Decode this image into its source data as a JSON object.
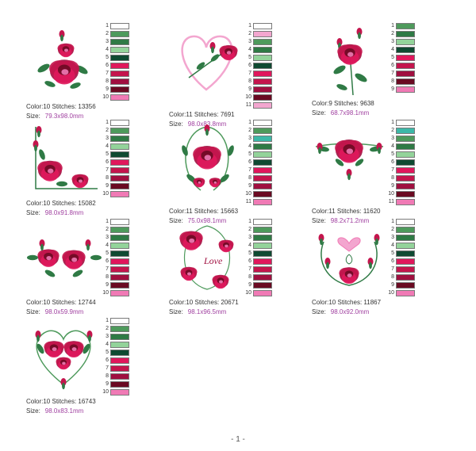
{
  "palette": {
    "white": "#ffffff",
    "mid_green": "#4e9a5c",
    "dark_green": "#2f7a45",
    "light_green": "#93d39a",
    "deep_green": "#0f4a32",
    "hot_pink": "#e0175c",
    "rose": "#c4154d",
    "crimson": "#a01040",
    "maroon": "#6a0a22",
    "pink": "#f07ab5",
    "teal": "#3db8a8",
    "light_pink": "#f3a6cf"
  },
  "designs": [
    {
      "color_label": "Color:10",
      "stitches_label": "Stitches:",
      "stitches": "13356",
      "size_label": "Size:",
      "size": "79.3x98.0mm",
      "art": "rose-bouquet-icon",
      "swatches": [
        [
          "1",
          "white"
        ],
        [
          "2",
          "mid_green"
        ],
        [
          "3",
          "dark_green"
        ],
        [
          "4",
          "light_green"
        ],
        [
          "5",
          "deep_green"
        ],
        [
          "6",
          "hot_pink"
        ],
        [
          "7",
          "rose"
        ],
        [
          "8",
          "crimson"
        ],
        [
          "9",
          "maroon"
        ],
        [
          "10",
          "pink"
        ]
      ]
    },
    {
      "color_label": "Color:11",
      "stitches_label": "Stitches:",
      "stitches": "7691",
      "size_label": "Size:",
      "size": "98.0x83.8mm",
      "art": "heart-rose-icon",
      "swatches": [
        [
          "1",
          "white"
        ],
        [
          "2",
          "light_pink"
        ],
        [
          "3",
          "mid_green"
        ],
        [
          "4",
          "dark_green"
        ],
        [
          "5",
          "light_green"
        ],
        [
          "6",
          "deep_green"
        ],
        [
          "7",
          "hot_pink"
        ],
        [
          "8",
          "rose"
        ],
        [
          "9",
          "crimson"
        ],
        [
          "10",
          "maroon"
        ],
        [
          "11",
          "light_pink"
        ]
      ]
    },
    {
      "color_label": "Color:9",
      "stitches_label": "Stitches:",
      "stitches": "9638",
      "size_label": "Size:",
      "size": "68.7x98.1mm",
      "art": "single-rose-icon",
      "swatches": [
        [
          "1",
          "mid_green"
        ],
        [
          "2",
          "dark_green"
        ],
        [
          "3",
          "light_green"
        ],
        [
          "4",
          "deep_green"
        ],
        [
          "5",
          "hot_pink"
        ],
        [
          "6",
          "rose"
        ],
        [
          "7",
          "crimson"
        ],
        [
          "8",
          "maroon"
        ],
        [
          "9",
          "pink"
        ]
      ]
    },
    {
      "color_label": "Color:10",
      "stitches_label": "Stitches:",
      "stitches": "15082",
      "size_label": "Size:",
      "size": "98.0x91.8mm",
      "art": "corner-rose-icon",
      "swatches": [
        [
          "1",
          "white"
        ],
        [
          "2",
          "mid_green"
        ],
        [
          "3",
          "dark_green"
        ],
        [
          "4",
          "light_green"
        ],
        [
          "5",
          "deep_green"
        ],
        [
          "6",
          "hot_pink"
        ],
        [
          "7",
          "rose"
        ],
        [
          "8",
          "crimson"
        ],
        [
          "9",
          "maroon"
        ],
        [
          "10",
          "pink"
        ]
      ]
    },
    {
      "color_label": "Color:11",
      "stitches_label": "Stitches:",
      "stitches": "15663",
      "size_label": "Size:",
      "size": "75.0x98.1mm",
      "art": "rose-wreath-icon",
      "swatches": [
        [
          "1",
          "white"
        ],
        [
          "2",
          "mid_green"
        ],
        [
          "3",
          "teal"
        ],
        [
          "4",
          "dark_green"
        ],
        [
          "5",
          "light_green"
        ],
        [
          "6",
          "deep_green"
        ],
        [
          "7",
          "hot_pink"
        ],
        [
          "8",
          "rose"
        ],
        [
          "9",
          "crimson"
        ],
        [
          "10",
          "maroon"
        ],
        [
          "11",
          "pink"
        ]
      ]
    },
    {
      "color_label": "Color:11",
      "stitches_label": "Stitches:",
      "stitches": "11620",
      "size_label": "Size:",
      "size": "98.2x71.2mm",
      "art": "rose-swag-icon",
      "swatches": [
        [
          "1",
          "white"
        ],
        [
          "2",
          "teal"
        ],
        [
          "3",
          "mid_green"
        ],
        [
          "4",
          "dark_green"
        ],
        [
          "5",
          "light_green"
        ],
        [
          "6",
          "deep_green"
        ],
        [
          "7",
          "hot_pink"
        ],
        [
          "8",
          "rose"
        ],
        [
          "9",
          "crimson"
        ],
        [
          "10",
          "maroon"
        ],
        [
          "11",
          "pink"
        ]
      ]
    },
    {
      "color_label": "Color:10",
      "stitches_label": "Stitches:",
      "stitches": "12744",
      "size_label": "Size:",
      "size": "98.0x59.9mm",
      "art": "rose-trio-icon",
      "swatches": [
        [
          "1",
          "white"
        ],
        [
          "2",
          "mid_green"
        ],
        [
          "3",
          "dark_green"
        ],
        [
          "4",
          "light_green"
        ],
        [
          "5",
          "deep_green"
        ],
        [
          "6",
          "hot_pink"
        ],
        [
          "7",
          "rose"
        ],
        [
          "8",
          "crimson"
        ],
        [
          "9",
          "maroon"
        ],
        [
          "10",
          "pink"
        ]
      ]
    },
    {
      "color_label": "Color:10",
      "stitches_label": "Stitches:",
      "stitches": "20671",
      "size_label": "Size:",
      "size": "98.1x96.5mm",
      "art": "love-rose-icon",
      "art_text": "Love",
      "swatches": [
        [
          "1",
          "white"
        ],
        [
          "2",
          "mid_green"
        ],
        [
          "3",
          "dark_green"
        ],
        [
          "4",
          "light_green"
        ],
        [
          "5",
          "deep_green"
        ],
        [
          "6",
          "hot_pink"
        ],
        [
          "7",
          "rose"
        ],
        [
          "8",
          "crimson"
        ],
        [
          "9",
          "maroon"
        ],
        [
          "10",
          "pink"
        ]
      ]
    },
    {
      "color_label": "Color:10",
      "stitches_label": "Stitches:",
      "stitches": "11867",
      "size_label": "Size:",
      "size": "98.0x92.0mm",
      "art": "heart-frame-icon",
      "swatches": [
        [
          "1",
          "white"
        ],
        [
          "2",
          "mid_green"
        ],
        [
          "3",
          "dark_green"
        ],
        [
          "4",
          "light_green"
        ],
        [
          "5",
          "deep_green"
        ],
        [
          "6",
          "hot_pink"
        ],
        [
          "7",
          "rose"
        ],
        [
          "8",
          "crimson"
        ],
        [
          "9",
          "maroon"
        ],
        [
          "10",
          "pink"
        ]
      ]
    },
    {
      "color_label": "Color:10",
      "stitches_label": "Stitches:",
      "stitches": "16743",
      "size_label": "Size:",
      "size": "98.0x83.1mm",
      "art": "rose-heart-icon",
      "swatches": [
        [
          "1",
          "white"
        ],
        [
          "2",
          "mid_green"
        ],
        [
          "3",
          "dark_green"
        ],
        [
          "4",
          "light_green"
        ],
        [
          "5",
          "deep_green"
        ],
        [
          "6",
          "hot_pink"
        ],
        [
          "7",
          "rose"
        ],
        [
          "8",
          "crimson"
        ],
        [
          "9",
          "maroon"
        ],
        [
          "10",
          "pink"
        ]
      ]
    }
  ],
  "page_number": "- 1 -"
}
